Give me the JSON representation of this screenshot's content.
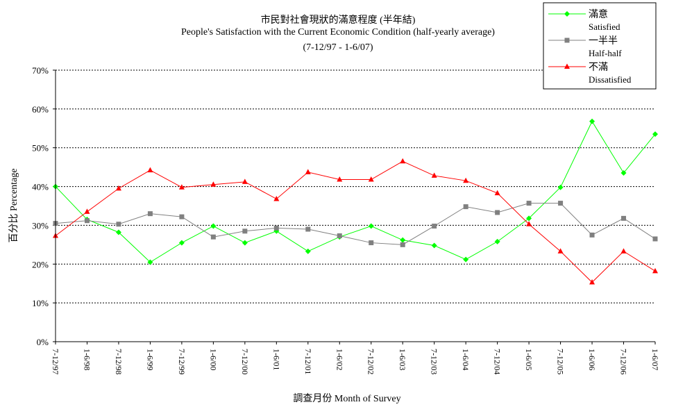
{
  "title": {
    "line1": "市民對社會現狀的滿意程度 (半年結)",
    "line2": "People's Satisfaction with the Current Economic Condition (half-yearly average)",
    "line3": "(7-12/97 - 1-6/07)"
  },
  "ylabel": "百分比 Percentage",
  "xlabel": "調查月份 Month of Survey",
  "legend": [
    {
      "zh": "滿意",
      "en": "Satisfied",
      "color": "#00ff00",
      "marker": "diamond"
    },
    {
      "zh": "一半半",
      "en": "Half-half",
      "color": "#808080",
      "marker": "square"
    },
    {
      "zh": "不滿",
      "en": "Dissatisfied",
      "color": "#ff0000",
      "marker": "triangle"
    }
  ],
  "chart_data": {
    "type": "line",
    "categories": [
      "7-12/97",
      "1-6/98",
      "7-12/98",
      "1-6/99",
      "7-12/99",
      "1-6/00",
      "7-12/00",
      "1-6/01",
      "7-12/01",
      "1-6/02",
      "7-12/02",
      "1-6/03",
      "7-12/03",
      "1-6/04",
      "7-12/04",
      "1-6/05",
      "7-12/05",
      "1-6/06",
      "7-12/06",
      "1-6/07"
    ],
    "yticks": [
      "0%",
      "10%",
      "20%",
      "30%",
      "40%",
      "50%",
      "60%",
      "70%"
    ],
    "ylim": [
      0,
      70
    ],
    "grid": true,
    "legend_position": "top-right",
    "series": [
      {
        "name": "滿意 Satisfied",
        "color": "#00ff00",
        "marker": "diamond",
        "values": [
          40.0,
          31.5,
          28.2,
          20.5,
          25.5,
          29.8,
          25.5,
          28.5,
          23.3,
          27.0,
          29.8,
          26.2,
          24.8,
          21.2,
          25.8,
          31.8,
          39.8,
          56.8,
          43.5,
          53.5
        ]
      },
      {
        "name": "一半半 Half-half",
        "color": "#808080",
        "marker": "square",
        "values": [
          30.5,
          31.2,
          30.3,
          33.0,
          32.2,
          27.0,
          28.5,
          29.3,
          29.0,
          27.3,
          25.5,
          25.0,
          29.8,
          34.8,
          33.3,
          35.7,
          35.7,
          27.5,
          31.8,
          26.5
        ]
      },
      {
        "name": "不滿 Dissatisfied",
        "color": "#ff0000",
        "marker": "triangle",
        "values": [
          27.3,
          33.5,
          39.5,
          44.2,
          39.8,
          40.5,
          41.2,
          36.8,
          43.7,
          41.8,
          41.8,
          46.5,
          42.8,
          41.5,
          38.3,
          30.3,
          23.3,
          15.3,
          23.3,
          18.2
        ]
      }
    ]
  }
}
